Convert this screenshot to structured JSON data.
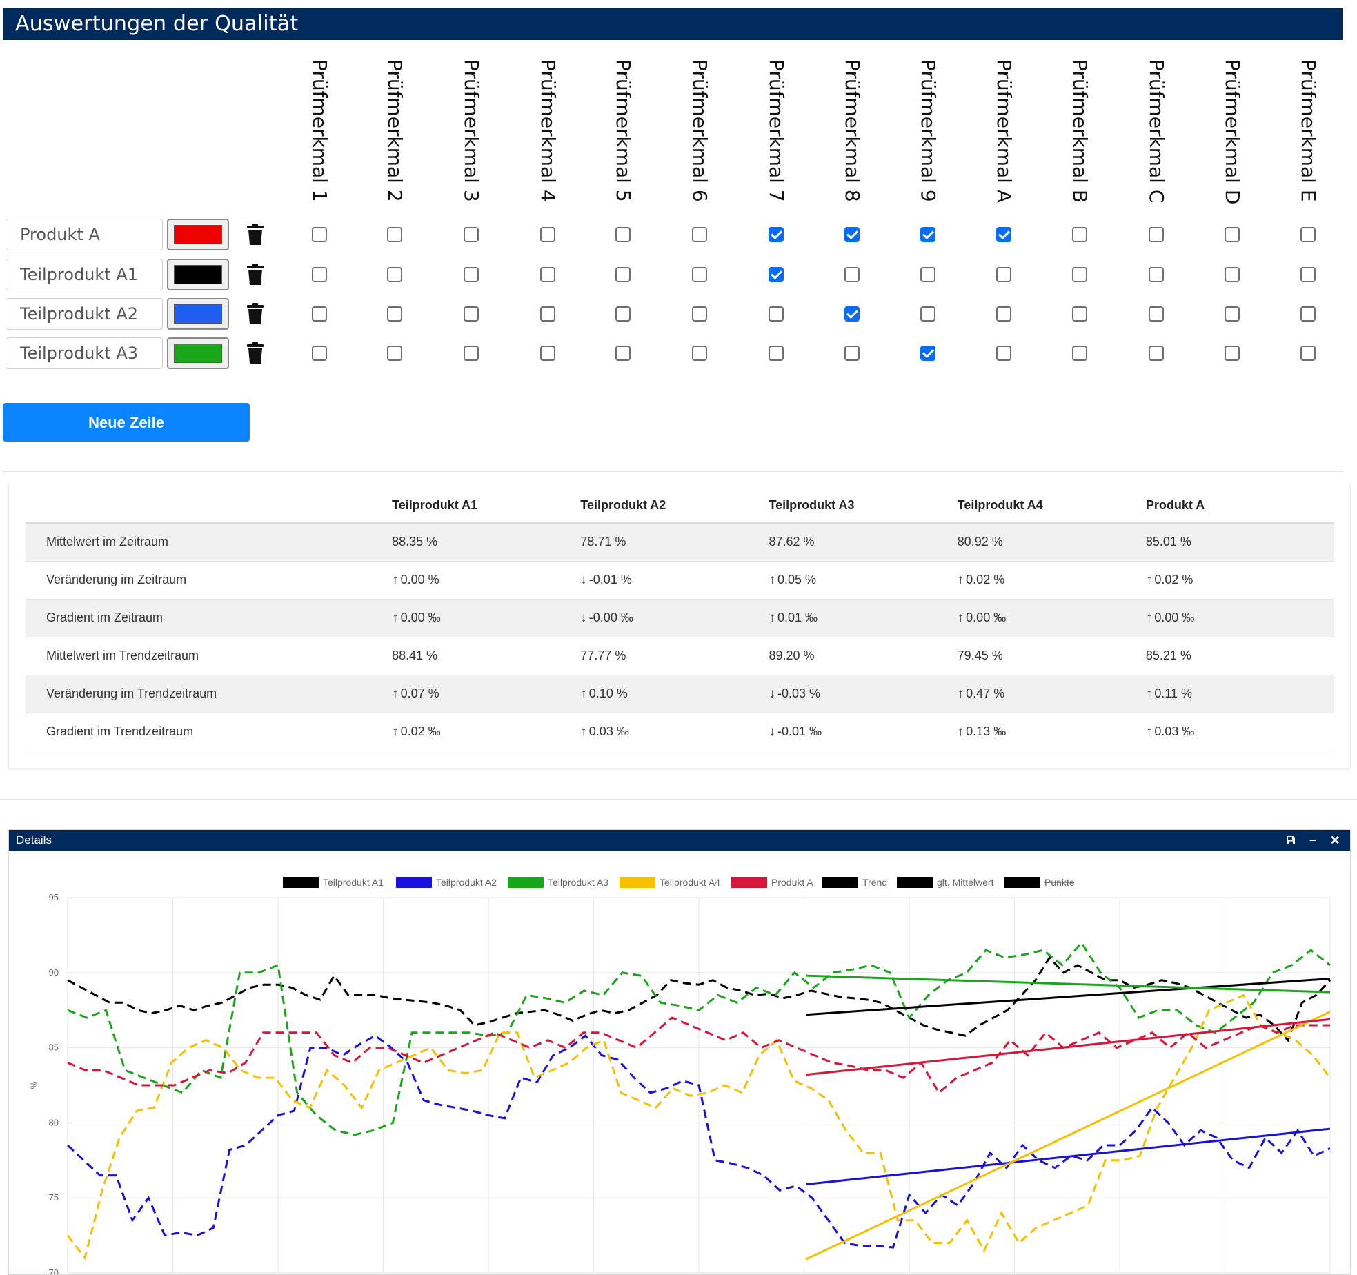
{
  "title": "Auswertungen der Qualität",
  "columns": [
    "Prüfmerkmal 1",
    "Prüfmerkmal 2",
    "Prüfmerkmal 3",
    "Prüfmerkmal 4",
    "Prüfmerkmal 5",
    "Prüfmerkmal 6",
    "Prüfmerkmal 7",
    "Prüfmerkmal 8",
    "Prüfmerkmal 9",
    "Prüfmerkmal A",
    "Prüfmerkmal B",
    "Prüfmerkmal C",
    "Prüfmerkmal D",
    "Prüfmerkmal E"
  ],
  "rows": [
    {
      "name": "Produkt A",
      "color": "#ee0000",
      "checked": [
        false,
        false,
        false,
        false,
        false,
        false,
        true,
        true,
        true,
        true,
        false,
        false,
        false,
        false
      ]
    },
    {
      "name": "Teilprodukt A1",
      "color": "#000000",
      "checked": [
        false,
        false,
        false,
        false,
        false,
        false,
        true,
        false,
        false,
        false,
        false,
        false,
        false,
        false
      ]
    },
    {
      "name": "Teilprodukt A2",
      "color": "#1f5ef0",
      "checked": [
        false,
        false,
        false,
        false,
        false,
        false,
        false,
        true,
        false,
        false,
        false,
        false,
        false,
        false
      ]
    },
    {
      "name": "Teilprodukt A3",
      "color": "#1aa81a",
      "checked": [
        false,
        false,
        false,
        false,
        false,
        false,
        false,
        false,
        true,
        false,
        false,
        false,
        false,
        false
      ]
    }
  ],
  "new_row_label": "Neue Zeile",
  "stats": {
    "headers": [
      "",
      "Teilprodukt A1",
      "Teilprodukt A2",
      "Teilprodukt A3",
      "Teilprodukt A4",
      "Produkt A"
    ],
    "rows": [
      {
        "label": "Mittelwert im Zeitraum",
        "cells": [
          {
            "v": "88.35 %"
          },
          {
            "v": "78.71 %"
          },
          {
            "v": "87.62 %"
          },
          {
            "v": "80.92 %"
          },
          {
            "v": "85.01 %"
          }
        ]
      },
      {
        "label": "Veränderung im Zeitraum",
        "cells": [
          {
            "v": "0.00 %",
            "dir": "up"
          },
          {
            "v": "-0.01 %",
            "dir": "down"
          },
          {
            "v": "0.05 %",
            "dir": "up"
          },
          {
            "v": "0.02 %",
            "dir": "up"
          },
          {
            "v": "0.02 %",
            "dir": "up"
          }
        ]
      },
      {
        "label": "Gradient im Zeitraum",
        "cells": [
          {
            "v": "0.00 ‰",
            "dir": "up"
          },
          {
            "v": "-0.00 ‰",
            "dir": "down"
          },
          {
            "v": "0.01 ‰",
            "dir": "up"
          },
          {
            "v": "0.00 ‰",
            "dir": "up"
          },
          {
            "v": "0.00 ‰",
            "dir": "up"
          }
        ]
      },
      {
        "label": "Mittelwert im Trendzeitraum",
        "cells": [
          {
            "v": "88.41 %"
          },
          {
            "v": "77.77 %"
          },
          {
            "v": "89.20 %"
          },
          {
            "v": "79.45 %"
          },
          {
            "v": "85.21 %"
          }
        ]
      },
      {
        "label": "Veränderung im Trendzeitraum",
        "cells": [
          {
            "v": "0.07 %",
            "dir": "up"
          },
          {
            "v": "0.10 %",
            "dir": "up"
          },
          {
            "v": "-0.03 %",
            "dir": "down"
          },
          {
            "v": "0.47 %",
            "dir": "up"
          },
          {
            "v": "0.11 %",
            "dir": "up"
          }
        ]
      },
      {
        "label": "Gradient im Trendzeitraum",
        "cells": [
          {
            "v": "0.02 ‰",
            "dir": "up"
          },
          {
            "v": "0.03 ‰",
            "dir": "up"
          },
          {
            "v": "-0.01 ‰",
            "dir": "down"
          },
          {
            "v": "0.13 ‰",
            "dir": "up"
          },
          {
            "v": "0.03 ‰",
            "dir": "up"
          }
        ]
      }
    ]
  },
  "details": {
    "title": "Details",
    "icons": [
      "save-icon",
      "minimize-icon",
      "close-icon"
    ]
  },
  "chart_data": {
    "type": "line",
    "ylabel": "%",
    "ylim": [
      70,
      95
    ],
    "yticks": [
      95,
      90,
      85,
      80,
      75,
      70
    ],
    "legend_position": "top",
    "legend": [
      {
        "name": "Teilprodukt A1",
        "color": "#000000"
      },
      {
        "name": "Teilprodukt A2",
        "color": "#1a10e0"
      },
      {
        "name": "Teilprodukt A3",
        "color": "#1ba51b"
      },
      {
        "name": "Teilprodukt A4",
        "color": "#f5c000"
      },
      {
        "name": "Produkt A",
        "color": "#d8163a"
      },
      {
        "name": "Trend",
        "color": "#000000"
      },
      {
        "name": "glt. Mittelwert",
        "color": "#000000"
      },
      {
        "name": "Punkte",
        "color": "#000000",
        "hidden": true
      }
    ],
    "series": [
      {
        "name": "Teilprodukt A1",
        "color": "#000000",
        "dashed": true,
        "values": [
          89.5,
          89.0,
          88.5,
          88.0,
          88.0,
          87.5,
          87.3,
          87.5,
          87.8,
          87.5,
          87.8,
          88.0,
          88.5,
          89.0,
          89.2,
          89.2,
          89.0,
          88.5,
          88.2,
          89.8,
          88.5,
          88.5,
          88.5,
          88.3,
          88.2,
          88.1,
          88.0,
          87.8,
          87.5,
          86.5,
          86.7,
          87.0,
          87.3,
          87.4,
          87.5,
          87.2,
          86.8,
          87.2,
          87.5,
          87.3,
          87.5,
          88.0,
          88.5,
          89.5,
          89.3,
          89.2,
          89.5,
          89.0,
          88.8,
          88.5,
          88.6,
          88.3,
          88.5,
          88.8,
          88.6,
          88.4,
          88.3,
          88.2,
          88.0,
          87.5,
          87.0,
          86.5,
          86.2,
          86.0,
          85.8,
          86.5,
          87.0,
          87.5,
          88.5,
          89.5,
          91.0,
          90.0,
          90.5,
          90.0,
          89.5,
          89.5,
          89.0,
          89.2,
          89.5,
          89.3,
          89.0,
          88.5,
          88.0,
          87.5,
          87.0,
          87.2,
          86.5,
          85.5,
          88.0,
          88.5,
          89.5
        ]
      },
      {
        "name": "Teilprodukt A2",
        "color": "#1a10e0",
        "dashed": true,
        "values": [
          78.5,
          77.5,
          76.5,
          76.5,
          73.5,
          75.0,
          72.5,
          72.7,
          72.5,
          73.0,
          78.2,
          78.5,
          79.5,
          80.5,
          80.8,
          85.0,
          85.0,
          84.5,
          85.2,
          85.8,
          85.0,
          84.0,
          81.5,
          81.2,
          81.0,
          80.8,
          80.5,
          80.3,
          83.0,
          82.7,
          84.5,
          85.0,
          85.8,
          84.5,
          84.2,
          83.0,
          82.0,
          82.3,
          82.8,
          82.5,
          77.5,
          77.3,
          77.0,
          76.5,
          75.5,
          75.8,
          75.0,
          73.5,
          72.0,
          71.8,
          71.8,
          71.7,
          75.2,
          74.0,
          75.2,
          74.5,
          76.0,
          78.0,
          77.0,
          78.5,
          77.5,
          77.0,
          77.8,
          77.5,
          78.5,
          78.5,
          79.5,
          81.0,
          80.0,
          78.5,
          79.5,
          79.0,
          77.5,
          77.0,
          79.0,
          78.0,
          79.5,
          77.8,
          78.3
        ]
      },
      {
        "name": "Teilprodukt A3",
        "color": "#1ba51b",
        "dashed": true,
        "values": [
          87.5,
          87.0,
          87.5,
          83.5,
          83.0,
          82.5,
          82.0,
          83.5,
          83.0,
          90.0,
          90.0,
          90.5,
          82.0,
          80.5,
          79.5,
          79.2,
          79.5,
          80.0,
          86.0,
          86.0,
          86.0,
          86.0,
          85.8,
          86.0,
          88.5,
          88.3,
          88.0,
          88.8,
          88.5,
          90.0,
          89.8,
          88.0,
          87.8,
          87.5,
          88.5,
          88.0,
          89.0,
          88.5,
          90.0,
          89.0,
          90.0,
          90.2,
          90.5,
          90.0,
          87.0,
          88.5,
          89.5,
          90.0,
          91.5,
          91.0,
          91.2,
          91.5,
          90.5,
          92.0,
          90.0,
          89.0,
          87.0,
          87.5,
          87.5,
          86.5,
          86.0,
          87.0,
          88.0,
          90.0,
          90.5,
          91.5,
          90.5
        ]
      },
      {
        "name": "Teilprodukt A4",
        "color": "#f5c000",
        "dashed": true,
        "values": [
          72.5,
          71.0,
          75.5,
          79.0,
          80.8,
          81.0,
          84.0,
          85.0,
          85.5,
          85.0,
          83.5,
          83.0,
          83.0,
          81.5,
          81.0,
          83.5,
          82.5,
          81.0,
          83.5,
          84.0,
          84.5,
          85.0,
          83.5,
          83.3,
          83.5,
          86.0,
          86.0,
          83.0,
          83.5,
          84.0,
          85.0,
          85.5,
          82.0,
          81.5,
          81.0,
          82.3,
          81.8,
          82.0,
          82.5,
          82.0,
          84.5,
          85.5,
          82.8,
          82.3,
          81.5,
          79.5,
          78.0,
          78.0,
          73.5,
          73.5,
          72.0,
          72.0,
          73.5,
          71.5,
          74.0,
          72.0,
          73.0,
          73.5,
          74.0,
          74.5,
          77.5,
          77.5,
          77.8,
          81.0,
          83.0,
          85.0,
          87.5,
          88.0,
          88.5,
          86.5,
          86.0,
          85.5,
          84.5,
          83.0
        ]
      },
      {
        "name": "Produkt A",
        "color": "#d8163a",
        "dashed": true,
        "values": [
          84.0,
          83.5,
          83.5,
          83.0,
          82.5,
          82.5,
          82.5,
          83.0,
          83.5,
          83.3,
          84.0,
          86.0,
          86.0,
          86.0,
          86.0,
          84.5,
          84.0,
          85.0,
          85.0,
          84.5,
          84.0,
          84.5,
          85.0,
          85.5,
          86.0,
          85.5,
          85.0,
          85.5,
          85.0,
          86.0,
          86.0,
          85.5,
          85.0,
          86.0,
          87.0,
          86.5,
          86.0,
          85.5,
          86.0,
          85.0,
          85.5,
          85.0,
          84.5,
          84.0,
          83.8,
          83.5,
          83.5,
          83.0,
          84.0,
          82.0,
          83.0,
          83.5,
          84.0,
          85.5,
          84.5,
          86.0,
          85.0,
          85.5,
          86.0,
          85.0,
          85.5,
          86.0,
          85.0,
          86.0,
          85.0,
          85.5,
          86.0,
          86.5,
          86.0,
          86.5,
          86.5,
          86.5
        ]
      },
      {
        "name": "Trend A1",
        "color": "#000000",
        "dashed": false,
        "trend": true,
        "from": 87.2,
        "to": 89.6
      },
      {
        "name": "Trend A2",
        "color": "#1a10e0",
        "dashed": false,
        "trend": true,
        "from": 75.9,
        "to": 79.6
      },
      {
        "name": "Trend A3",
        "color": "#1ba51b",
        "dashed": false,
        "trend": true,
        "from": 89.8,
        "to": 88.7
      },
      {
        "name": "Trend A4",
        "color": "#f5c000",
        "dashed": false,
        "trend": true,
        "from": 70.9,
        "to": 87.4
      },
      {
        "name": "Trend Produkt A",
        "color": "#d8163a",
        "dashed": false,
        "trend": true,
        "from": 83.2,
        "to": 86.9
      }
    ]
  }
}
